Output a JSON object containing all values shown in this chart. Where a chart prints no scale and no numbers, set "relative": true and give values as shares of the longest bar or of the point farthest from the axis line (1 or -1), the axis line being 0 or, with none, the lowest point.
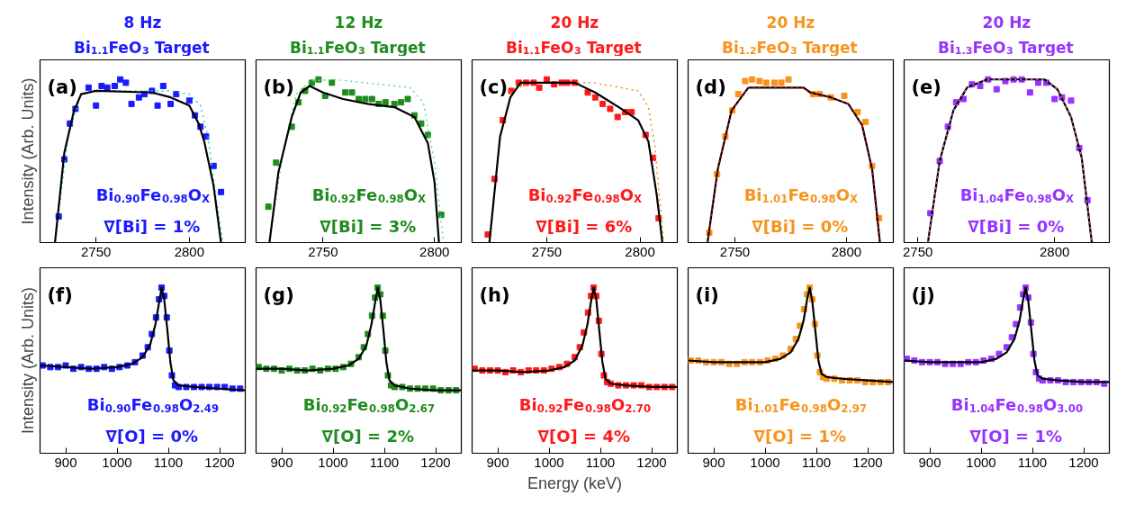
{
  "chart_data": [
    {
      "type": "scatter",
      "title": "8 Hz",
      "subtitle": "Bi$_{1.1}$FeO$_{3}$ Target",
      "ylabel": "Intensity (Arb. Units)",
      "annotations": [
        "(a)",
        "Bi$_{0.90}$Fe$_{0.98}$O$_{X}$",
        "∇[Bi] = 1%"
      ],
      "relative": true,
      "xlim": [
        2720,
        2830
      ],
      "xticks": [
        2750,
        2800
      ],
      "grid": false,
      "series": [
        {
          "marker": "square",
          "color": "#1a1aff",
          "x": [
            2730,
            2733,
            2736,
            2739,
            2746,
            2750,
            2753,
            2756,
            2760,
            2763,
            2766,
            2769,
            2773,
            2776,
            2780,
            2783,
            2786,
            2790,
            2793,
            2800,
            2803,
            2806,
            2809,
            2813,
            2817
          ],
          "values": [
            0.16,
            0.51,
            0.73,
            0.82,
            0.95,
            0.84,
            0.96,
            0.95,
            0.96,
            1.0,
            0.98,
            0.85,
            0.89,
            0.91,
            0.93,
            0.84,
            0.96,
            0.85,
            0.91,
            0.87,
            0.78,
            0.71,
            0.65,
            0.47,
            0.31
          ]
        },
        {
          "type": "line",
          "color": "#33cccc",
          "line_style": "dotted",
          "x": [
            2728,
            2735,
            2742,
            2750,
            2790,
            2800,
            2806,
            2810,
            2814,
            2818
          ],
          "values": [
            0,
            0.65,
            0.91,
            0.93,
            0.93,
            0.91,
            0.84,
            0.65,
            0.3,
            0
          ]
        },
        {
          "type": "line",
          "color": "#000000",
          "line_style": "solid",
          "x": [
            2728,
            2733,
            2738,
            2742,
            2750,
            2780,
            2790,
            2800,
            2805,
            2808,
            2813,
            2817
          ],
          "values": [
            0,
            0.55,
            0.8,
            0.91,
            0.93,
            0.92,
            0.89,
            0.84,
            0.73,
            0.62,
            0.35,
            0
          ]
        }
      ]
    },
    {
      "type": "scatter",
      "title": "12 Hz",
      "subtitle": "Bi$_{1.1}$FeO$_{3}$ Target",
      "annotations": [
        "(b)",
        "Bi$_{0.92}$Fe$_{0.98}$O$_{X}$",
        "∇[Bi] = 3%"
      ],
      "relative": true,
      "xlim": [
        2720,
        2812
      ],
      "xticks": [
        2750,
        2800
      ],
      "grid": false,
      "series": [
        {
          "marker": "square",
          "color": "#1e8c1e",
          "x": [
            2725.5,
            2729,
            2736,
            2739,
            2742,
            2745,
            2748,
            2751,
            2754,
            2760,
            2763,
            2766,
            2769,
            2772,
            2775,
            2778,
            2782,
            2785,
            2788,
            2791,
            2794,
            2797,
            2803
          ],
          "values": [
            0.22,
            0.49,
            0.71,
            0.86,
            0.93,
            0.98,
            1.0,
            0.9,
            0.98,
            0.92,
            0.92,
            0.88,
            0.88,
            0.88,
            0.85,
            0.86,
            0.85,
            0.86,
            0.88,
            0.78,
            0.73,
            0.66,
            0.17
          ]
        },
        {
          "type": "line",
          "color": "#66dd88",
          "line_style": "dotted",
          "x": [
            2726,
            2732,
            2738,
            2744,
            2755,
            2789,
            2795,
            2800,
            2804
          ],
          "values": [
            0,
            0.55,
            0.91,
            0.99,
            1.0,
            0.95,
            0.86,
            0.49,
            0
          ]
        },
        {
          "type": "line",
          "color": "#000000",
          "line_style": "solid",
          "x": [
            2726,
            2730,
            2736,
            2740,
            2744,
            2750,
            2759,
            2770,
            2782,
            2791,
            2797,
            2800,
            2802
          ],
          "values": [
            0,
            0.43,
            0.77,
            0.92,
            0.96,
            0.92,
            0.88,
            0.85,
            0.83,
            0.77,
            0.61,
            0.37,
            0
          ]
        }
      ]
    },
    {
      "type": "scatter",
      "title": "20 Hz",
      "subtitle": "Bi$_{1.1}$FeO$_{3}$ Target",
      "annotations": [
        "(c)",
        "Bi$_{0.92}$Fe$_{0.98}$O$_{X}$",
        "∇[Bi] = 6%"
      ],
      "relative": true,
      "xlim": [
        2710,
        2820
      ],
      "xticks": [
        2750,
        2800
      ],
      "grid": false,
      "series": [
        {
          "marker": "square",
          "color": "#ff1a1a",
          "x": [
            2718.4,
            2722,
            2726.5,
            2731,
            2735,
            2739,
            2743,
            2746,
            2750,
            2754,
            2758,
            2761,
            2765,
            2772,
            2776,
            2780,
            2784,
            2788,
            2792,
            2795.5,
            2803,
            2807,
            2810
          ],
          "values": [
            0.05,
            0.39,
            0.75,
            0.93,
            0.98,
            0.98,
            0.98,
            0.95,
            1.0,
            0.97,
            0.98,
            0.98,
            0.98,
            0.92,
            0.89,
            0.85,
            0.82,
            0.77,
            0.8,
            0.8,
            0.66,
            0.52,
            0.15
          ]
        },
        {
          "type": "line",
          "color": "#e69500",
          "line_style": "dotted",
          "x": [
            2719,
            2725,
            2731,
            2740,
            2775,
            2785,
            2799,
            2804.5,
            2808,
            2812.6
          ],
          "values": [
            0,
            0.65,
            0.92,
            0.98,
            0.98,
            0.96,
            0.93,
            0.83,
            0.59,
            0
          ]
        },
        {
          "type": "line",
          "color": "#000000",
          "line_style": "solid",
          "x": [
            2719.3,
            2725,
            2730.5,
            2736,
            2747,
            2765,
            2776,
            2790,
            2799,
            2804.5,
            2809,
            2812
          ],
          "values": [
            0,
            0.65,
            0.89,
            0.98,
            0.98,
            0.98,
            0.92,
            0.82,
            0.75,
            0.62,
            0.29,
            0
          ]
        }
      ]
    },
    {
      "type": "scatter",
      "title": "20 Hz",
      "subtitle": "Bi$_{1.2}$FeO$_{3}$ Target",
      "annotations": [
        "(d)",
        "Bi$_{1.01}$Fe$_{0.98}$O$_{X}$",
        "∇[Bi] = 0%"
      ],
      "relative": true,
      "xlim": [
        2729,
        2821
      ],
      "xticks": [
        2750,
        2800
      ],
      "grid": false,
      "series": [
        {
          "marker": "square",
          "color": "#f7941d",
          "x": [
            2738.5,
            2742,
            2745.7,
            2748.8,
            2751.5,
            2754.6,
            2757.7,
            2761,
            2764,
            2767.7,
            2770.8,
            2774,
            2785,
            2788,
            2793,
            2799,
            2805,
            2808.5,
            2811.5,
            2814.6
          ],
          "values": [
            0.06,
            0.42,
            0.65,
            0.81,
            0.91,
            0.99,
            1.0,
            0.99,
            0.98,
            0.98,
            0.98,
            1.0,
            0.91,
            0.91,
            0.89,
            0.9,
            0.8,
            0.74,
            0.47,
            0.15
          ]
        },
        {
          "type": "line",
          "color": "#000000",
          "line_style": "solid",
          "x": [
            2737.7,
            2742.3,
            2748.5,
            2756,
            2780.8,
            2783.8,
            2793,
            2800.8,
            2807,
            2811.5,
            2815
          ],
          "values": [
            0,
            0.45,
            0.81,
            0.95,
            0.95,
            0.92,
            0.89,
            0.85,
            0.72,
            0.45,
            0
          ]
        },
        {
          "type": "line",
          "color": "#ff0000",
          "line_style": "dotted",
          "x": [
            2737.7,
            2742.3,
            2748.5,
            2756,
            2780.8,
            2783.8,
            2793,
            2800.8,
            2807,
            2811.5,
            2815
          ],
          "values": [
            0,
            0.45,
            0.81,
            0.95,
            0.95,
            0.92,
            0.89,
            0.85,
            0.72,
            0.45,
            0
          ]
        }
      ]
    },
    {
      "type": "scatter",
      "title": "20 Hz",
      "subtitle": "Bi$_{1.3}$FeO$_{3}$ Target",
      "annotations": [
        "(e)",
        "Bi$_{1.04}$Fe$_{0.98}$O$_{X}$",
        "∇[Bi] = 0%"
      ],
      "relative": true,
      "xlim": [
        2745,
        2820
      ],
      "xticks": [
        2750,
        2800
      ],
      "grid": false,
      "series": [
        {
          "marker": "square",
          "color": "#9933ff",
          "x": [
            2754.6,
            2758,
            2761,
            2764,
            2766.7,
            2769.8,
            2772.8,
            2775.7,
            2778.8,
            2782,
            2785,
            2788,
            2791,
            2794,
            2797,
            2800,
            2802.7,
            2806,
            2809,
            2812
          ],
          "values": [
            0.18,
            0.5,
            0.71,
            0.86,
            0.88,
            0.97,
            0.96,
            1.0,
            0.94,
            0.99,
            1.0,
            1.0,
            0.92,
            0.98,
            0.98,
            0.88,
            0.89,
            0.87,
            0.58,
            0.26
          ]
        },
        {
          "type": "line",
          "color": "#000000",
          "line_style": "solid",
          "x": [
            2753.7,
            2758,
            2763,
            2768,
            2775.3,
            2796.3,
            2801,
            2806,
            2809.9,
            2813.6
          ],
          "values": [
            0,
            0.5,
            0.81,
            0.95,
            1.0,
            1.0,
            0.94,
            0.77,
            0.52,
            0
          ]
        },
        {
          "type": "line",
          "color": "#ff66cc",
          "line_style": "dotted",
          "x": [
            2753.7,
            2758,
            2763,
            2768,
            2775.3,
            2796.3,
            2801,
            2806,
            2809.9,
            2813.6
          ],
          "values": [
            0,
            0.5,
            0.81,
            0.95,
            1.0,
            1.0,
            0.94,
            0.77,
            0.52,
            0
          ]
        }
      ]
    },
    {
      "type": "scatter",
      "ylabel": "Intensity (Arb. Units)",
      "annotations": [
        "(f)",
        "Bi$_{0.90}$Fe$_{0.98}$O$_{2.49}$",
        "∇[O] = 0%"
      ],
      "relative": true,
      "xlim": [
        850,
        1250
      ],
      "xticks": [
        900,
        1000,
        1100,
        1200
      ],
      "grid": false,
      "series": [
        {
          "marker": "square",
          "color": "#1a1aff",
          "x": [
            855,
            870,
            885,
            900,
            915,
            930,
            945,
            960,
            975,
            990,
            1005,
            1020,
            1035,
            1050,
            1060,
            1068,
            1076,
            1082,
            1087,
            1092,
            1097,
            1102,
            1107,
            1113,
            1120,
            1135,
            1150,
            1165,
            1180,
            1195,
            1210,
            1225,
            1240
          ],
          "values": [
            0.53,
            0.52,
            0.52,
            0.53,
            0.51,
            0.52,
            0.51,
            0.51,
            0.52,
            0.51,
            0.52,
            0.53,
            0.55,
            0.59,
            0.64,
            0.72,
            0.82,
            0.93,
            1.0,
            0.95,
            0.82,
            0.62,
            0.47,
            0.41,
            0.4,
            0.4,
            0.4,
            0.4,
            0.4,
            0.4,
            0.4,
            0.39,
            0.39
          ]
        },
        {
          "type": "line",
          "color": "#000000",
          "line_style": "solid",
          "x": [
            850,
            900,
            950,
            1000,
            1030,
            1050,
            1065,
            1075,
            1082,
            1087,
            1092,
            1098,
            1104,
            1110,
            1120,
            1150,
            1200,
            1250
          ],
          "values": [
            0.53,
            0.52,
            0.51,
            0.52,
            0.54,
            0.58,
            0.66,
            0.78,
            0.91,
            1.0,
            0.93,
            0.75,
            0.55,
            0.44,
            0.41,
            0.4,
            0.39,
            0.38
          ]
        }
      ]
    },
    {
      "type": "scatter",
      "annotations": [
        "(g)",
        "Bi$_{0.92}$Fe$_{0.98}$O$_{2.67}$",
        "∇[O] = 2%"
      ],
      "relative": true,
      "xlim": [
        850,
        1250
      ],
      "xticks": [
        900,
        1000,
        1100,
        1200
      ],
      "grid": false,
      "series": [
        {
          "marker": "square",
          "color": "#1e8c1e",
          "x": [
            855,
            870,
            885,
            900,
            915,
            930,
            945,
            960,
            975,
            990,
            1005,
            1020,
            1035,
            1050,
            1060,
            1068,
            1076,
            1082,
            1087,
            1092,
            1097,
            1102,
            1107,
            1113,
            1120,
            1135,
            1150,
            1165,
            1180,
            1195,
            1210,
            1225,
            1240
          ],
          "values": [
            0.52,
            0.51,
            0.51,
            0.5,
            0.51,
            0.5,
            0.5,
            0.51,
            0.5,
            0.51,
            0.51,
            0.52,
            0.54,
            0.58,
            0.64,
            0.72,
            0.83,
            0.94,
            1.0,
            0.96,
            0.83,
            0.62,
            0.47,
            0.41,
            0.4,
            0.4,
            0.39,
            0.39,
            0.39,
            0.39,
            0.38,
            0.38,
            0.38
          ]
        },
        {
          "type": "line",
          "color": "#000000",
          "line_style": "solid",
          "x": [
            850,
            900,
            950,
            1000,
            1030,
            1050,
            1065,
            1075,
            1082,
            1087,
            1092,
            1098,
            1104,
            1110,
            1120,
            1150,
            1200,
            1250
          ],
          "values": [
            0.51,
            0.51,
            0.5,
            0.51,
            0.53,
            0.57,
            0.65,
            0.78,
            0.91,
            1.0,
            0.93,
            0.75,
            0.55,
            0.44,
            0.41,
            0.39,
            0.38,
            0.38
          ]
        }
      ]
    },
    {
      "type": "scatter",
      "xlabel": "Energy (keV)",
      "annotations": [
        "(h)",
        "Bi$_{0.92}$Fe$_{0.98}$O$_{2.70}$",
        "∇[O] = 4%"
      ],
      "relative": true,
      "xlim": [
        850,
        1250
      ],
      "xticks": [
        900,
        1000,
        1100,
        1200
      ],
      "grid": false,
      "series": [
        {
          "marker": "square",
          "color": "#ff1a1a",
          "x": [
            855,
            870,
            885,
            900,
            915,
            930,
            945,
            960,
            975,
            990,
            1005,
            1020,
            1035,
            1050,
            1060,
            1068,
            1076,
            1082,
            1087,
            1092,
            1097,
            1102,
            1107,
            1113,
            1120,
            1135,
            1150,
            1165,
            1180,
            1195,
            1210,
            1225,
            1240
          ],
          "values": [
            0.51,
            0.5,
            0.5,
            0.5,
            0.49,
            0.5,
            0.49,
            0.5,
            0.5,
            0.5,
            0.51,
            0.52,
            0.54,
            0.58,
            0.64,
            0.73,
            0.85,
            0.95,
            1.0,
            0.95,
            0.8,
            0.6,
            0.47,
            0.43,
            0.42,
            0.41,
            0.41,
            0.41,
            0.41,
            0.4,
            0.4,
            0.4,
            0.4
          ]
        },
        {
          "type": "line",
          "color": "#000000",
          "line_style": "solid",
          "x": [
            850,
            900,
            950,
            1000,
            1030,
            1050,
            1065,
            1075,
            1082,
            1087,
            1092,
            1098,
            1104,
            1110,
            1120,
            1150,
            1200,
            1250
          ],
          "values": [
            0.5,
            0.5,
            0.49,
            0.5,
            0.52,
            0.56,
            0.65,
            0.78,
            0.92,
            1.0,
            0.93,
            0.74,
            0.55,
            0.45,
            0.42,
            0.41,
            0.4,
            0.4
          ]
        }
      ]
    },
    {
      "type": "scatter",
      "annotations": [
        "(i)",
        "Bi$_{1.01}$Fe$_{0.98}$O$_{2.97}$",
        "∇[O] = 1%"
      ],
      "relative": true,
      "xlim": [
        850,
        1250
      ],
      "xticks": [
        900,
        1000,
        1100,
        1200
      ],
      "grid": false,
      "series": [
        {
          "marker": "square",
          "color": "#f7941d",
          "x": [
            855,
            870,
            885,
            900,
            915,
            930,
            945,
            960,
            975,
            990,
            1005,
            1020,
            1035,
            1050,
            1060,
            1068,
            1076,
            1082,
            1087,
            1092,
            1097,
            1102,
            1107,
            1113,
            1120,
            1135,
            1150,
            1165,
            1180,
            1195,
            1210,
            1225,
            1240
          ],
          "values": [
            0.56,
            0.56,
            0.55,
            0.55,
            0.55,
            0.54,
            0.54,
            0.55,
            0.55,
            0.55,
            0.56,
            0.57,
            0.59,
            0.63,
            0.69,
            0.77,
            0.87,
            0.96,
            1.0,
            0.93,
            0.78,
            0.59,
            0.49,
            0.46,
            0.45,
            0.45,
            0.44,
            0.44,
            0.44,
            0.43,
            0.43,
            0.43,
            0.43
          ]
        },
        {
          "type": "line",
          "color": "#000000",
          "line_style": "solid",
          "x": [
            850,
            900,
            950,
            1000,
            1030,
            1050,
            1065,
            1075,
            1082,
            1087,
            1092,
            1098,
            1104,
            1110,
            1120,
            1150,
            1200,
            1250
          ],
          "values": [
            0.56,
            0.55,
            0.55,
            0.55,
            0.57,
            0.61,
            0.69,
            0.8,
            0.93,
            1.0,
            0.92,
            0.74,
            0.56,
            0.48,
            0.46,
            0.45,
            0.44,
            0.43
          ]
        }
      ]
    },
    {
      "type": "scatter",
      "annotations": [
        "(j)",
        "Bi$_{1.04}$Fe$_{0.98}$O$_{3.00}$",
        "∇[O] = 1%"
      ],
      "relative": true,
      "xlim": [
        850,
        1250
      ],
      "xticks": [
        900,
        1000,
        1100,
        1200
      ],
      "grid": false,
      "series": [
        {
          "marker": "square",
          "color": "#9933ff",
          "x": [
            855,
            870,
            885,
            900,
            915,
            930,
            945,
            960,
            975,
            990,
            1005,
            1020,
            1035,
            1050,
            1060,
            1068,
            1076,
            1082,
            1087,
            1092,
            1097,
            1102,
            1107,
            1113,
            1120,
            1135,
            1150,
            1165,
            1180,
            1195,
            1210,
            1225,
            1240
          ],
          "values": [
            0.57,
            0.56,
            0.55,
            0.55,
            0.55,
            0.54,
            0.54,
            0.54,
            0.55,
            0.55,
            0.56,
            0.57,
            0.6,
            0.64,
            0.7,
            0.78,
            0.88,
            0.96,
            1.0,
            0.94,
            0.79,
            0.6,
            0.49,
            0.45,
            0.44,
            0.44,
            0.44,
            0.43,
            0.43,
            0.43,
            0.43,
            0.43,
            0.42
          ]
        },
        {
          "type": "line",
          "color": "#000000",
          "line_style": "solid",
          "x": [
            850,
            900,
            950,
            1000,
            1030,
            1050,
            1065,
            1075,
            1082,
            1087,
            1092,
            1098,
            1104,
            1110,
            1120,
            1150,
            1200,
            1250
          ],
          "values": [
            0.56,
            0.55,
            0.55,
            0.55,
            0.57,
            0.61,
            0.69,
            0.8,
            0.93,
            1.0,
            0.92,
            0.74,
            0.56,
            0.47,
            0.45,
            0.44,
            0.43,
            0.43
          ]
        }
      ]
    }
  ]
}
